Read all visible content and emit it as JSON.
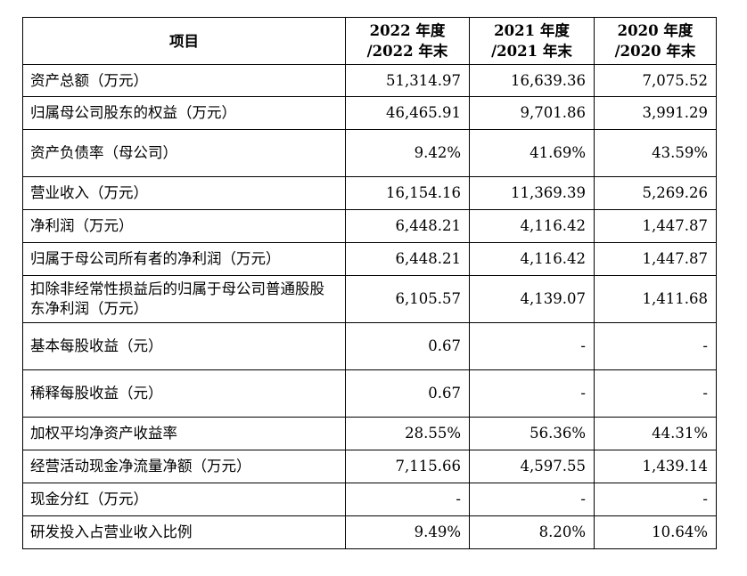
{
  "table": {
    "headers": [
      "项目",
      "2022 年度\n/2022 年末",
      "2021 年度\n/2021 年末",
      "2020 年度\n/2020 年末"
    ],
    "rows": [
      {
        "label": "资产总额（万元）",
        "values": [
          "51,314.97",
          "16,639.36",
          "7,075.52"
        ]
      },
      {
        "label": "归属母公司股东的权益（万元）",
        "values": [
          "46,465.91",
          "9,701.86",
          "3,991.29"
        ]
      },
      {
        "label": "资产负债率（母公司）",
        "values": [
          "9.42%",
          "41.69%",
          "43.59%"
        ]
      },
      {
        "label": "营业收入（万元）",
        "values": [
          "16,154.16",
          "11,369.39",
          "5,269.26"
        ]
      },
      {
        "label": "净利润（万元）",
        "values": [
          "6,448.21",
          "4,116.42",
          "1,447.87"
        ]
      },
      {
        "label": "归属于母公司所有者的净利润（万元）",
        "values": [
          "6,448.21",
          "4,116.42",
          "1,447.87"
        ]
      },
      {
        "label": "扣除非经常性损益后的归属于母公司普通股股东净利润（万元）",
        "values": [
          "6,105.57",
          "4,139.07",
          "1,411.68"
        ]
      },
      {
        "label": "基本每股收益（元）",
        "values": [
          "0.67",
          "-",
          "-"
        ]
      },
      {
        "label": "稀释每股收益（元）",
        "values": [
          "0.67",
          "-",
          "-"
        ]
      },
      {
        "label": "加权平均净资产收益率",
        "values": [
          "28.55%",
          "56.36%",
          "44.31%"
        ]
      },
      {
        "label": "经营活动现金净流量净额（万元）",
        "values": [
          "7,115.66",
          "4,597.55",
          "1,439.14"
        ]
      },
      {
        "label": "现金分红（万元）",
        "values": [
          "-",
          "-",
          "-"
        ]
      },
      {
        "label": "研发投入占营业收入比例",
        "values": [
          "9.49%",
          "8.20%",
          "10.64%"
        ]
      }
    ]
  }
}
